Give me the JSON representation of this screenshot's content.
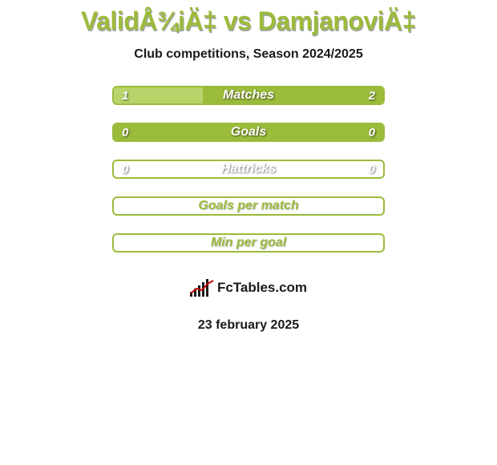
{
  "colors": {
    "page_bg": "#ffffff",
    "green_main": "#9bbb3b",
    "green_alt": "#b8d36a",
    "white": "#ffffff",
    "text_dark": "#1a1a1a",
    "shadow": "rgba(0,0,0,0.35)",
    "logo_bg": "#ffffff",
    "logo_text": "#1a1a1a"
  },
  "title": {
    "text": "ValidÅ¾iÄ‡ vs DamjanoviÄ‡",
    "fontsize": 32,
    "color": "#9bbb3b",
    "shadow": "1px 2px 0 rgba(0,0,0,0.35)"
  },
  "subtitle": {
    "text": "Club competitions, Season 2024/2025",
    "color": "#1a1a1a"
  },
  "stats": [
    {
      "label": "Matches",
      "left_value": "1",
      "right_value": "2",
      "left_pct": 33,
      "right_pct": 67,
      "left_fill": "#b8d36a",
      "right_fill": "#9bbb3b",
      "border": "#9bbb3b",
      "label_color": "#ffffff",
      "label_shadow": "1px 1px 2px rgba(0,0,0,0.6)",
      "value_color": "#ffffff",
      "value_shadow": "1px 1px 2px rgba(0,0,0,0.6)",
      "show_ellipses": true,
      "ellipse_color": "#ffffff"
    },
    {
      "label": "Goals",
      "left_value": "0",
      "right_value": "0",
      "left_pct": 100,
      "right_pct": 0,
      "left_fill": "#9bbb3b",
      "right_fill": "#9bbb3b",
      "border": "#9bbb3b",
      "label_color": "#ffffff",
      "label_shadow": "1px 1px 2px rgba(0,0,0,0.6)",
      "value_color": "#ffffff",
      "value_shadow": "1px 1px 2px rgba(0,0,0,0.6)",
      "show_ellipses": true,
      "ellipse_color": "#ffffff"
    },
    {
      "label": "Hattricks",
      "left_value": "0",
      "right_value": "0",
      "left_pct": 0,
      "right_pct": 0,
      "left_fill": "transparent",
      "right_fill": "transparent",
      "border": "#9bbb3b",
      "label_color": "#ffffff",
      "label_shadow": "1px 1px 2px rgba(0,0,0,0.55)",
      "value_color": "#ffffff",
      "value_shadow": "1px 1px 2px rgba(0,0,0,0.55)",
      "show_ellipses": false
    },
    {
      "label": "Goals per match",
      "left_value": "",
      "right_value": "",
      "left_pct": 0,
      "right_pct": 0,
      "left_fill": "transparent",
      "right_fill": "transparent",
      "border": "#9bbb3b",
      "label_color": "#9bbb3b",
      "label_shadow": "1px 1px 1px rgba(0,0,0,0.25)",
      "value_color": "#9bbb3b",
      "value_shadow": "none",
      "show_ellipses": false
    },
    {
      "label": "Min per goal",
      "left_value": "",
      "right_value": "",
      "left_pct": 0,
      "right_pct": 0,
      "left_fill": "transparent",
      "right_fill": "transparent",
      "border": "#9bbb3b",
      "label_color": "#9bbb3b",
      "label_shadow": "1px 1px 1px rgba(0,0,0,0.25)",
      "value_color": "#9bbb3b",
      "value_shadow": "none",
      "show_ellipses": false
    }
  ],
  "logo": {
    "bg": "#ffffff",
    "text": "FcTables.com",
    "text_color": "#1a1a1a",
    "bar_color": "#1a1a1a",
    "line_color": "#c00000",
    "bars": [
      6,
      10,
      14,
      18,
      22
    ]
  },
  "date": {
    "text": "23 february 2025",
    "color": "#1a1a1a"
  }
}
